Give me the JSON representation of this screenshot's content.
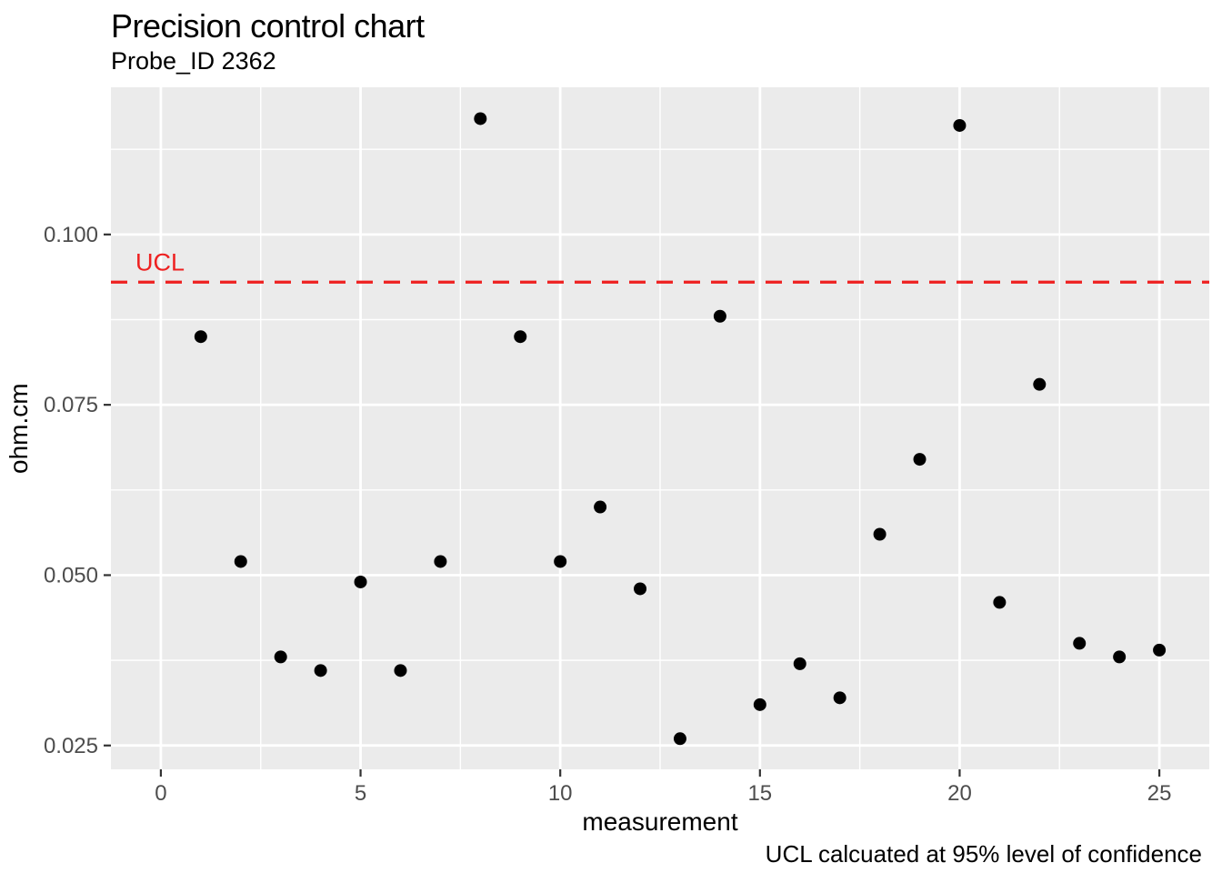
{
  "chart_data": {
    "type": "scatter",
    "title": "Precision control chart",
    "subtitle": "Probe_ID 2362",
    "xlabel": "measurement",
    "ylabel": "ohm.cm",
    "caption": "UCL calcuated at 95% level of confidence",
    "x": [
      1,
      2,
      3,
      4,
      5,
      6,
      7,
      8,
      9,
      10,
      11,
      12,
      13,
      14,
      15,
      16,
      17,
      18,
      19,
      20,
      21,
      22,
      23,
      24,
      25
    ],
    "y": [
      0.085,
      0.052,
      0.038,
      0.036,
      0.049,
      0.036,
      0.052,
      0.117,
      0.085,
      0.052,
      0.06,
      0.048,
      0.026,
      0.088,
      0.031,
      0.037,
      0.032,
      0.056,
      0.067,
      0.116,
      0.046,
      0.078,
      0.04,
      0.038,
      0.039
    ],
    "ucl": {
      "label": "UCL",
      "value": 0.093
    },
    "xlim": [
      -1.25,
      26.25
    ],
    "ylim": [
      0.0215,
      0.1216
    ],
    "x_ticks": [
      0,
      5,
      10,
      15,
      20,
      25
    ],
    "x_tick_labels": [
      "0",
      "5",
      "10",
      "15",
      "20",
      "25"
    ],
    "y_ticks": [
      0.025,
      0.05,
      0.075,
      0.1
    ],
    "y_tick_labels": [
      "0.025",
      "0.050",
      "0.075",
      "0.100"
    ],
    "x_minor_breaks": [
      2.5,
      7.5,
      12.5,
      17.5,
      22.5
    ],
    "y_minor_breaks": [
      0.0375,
      0.0625,
      0.0875,
      0.1125
    ],
    "grid": true,
    "legend": "none"
  },
  "colors": {
    "panel_bg": "#EBEBEB",
    "grid": "#FFFFFF",
    "point": "#000000",
    "ucl_red": "#EE2020",
    "axis_text": "#4D4D4D",
    "tick_mark": "#333333"
  }
}
